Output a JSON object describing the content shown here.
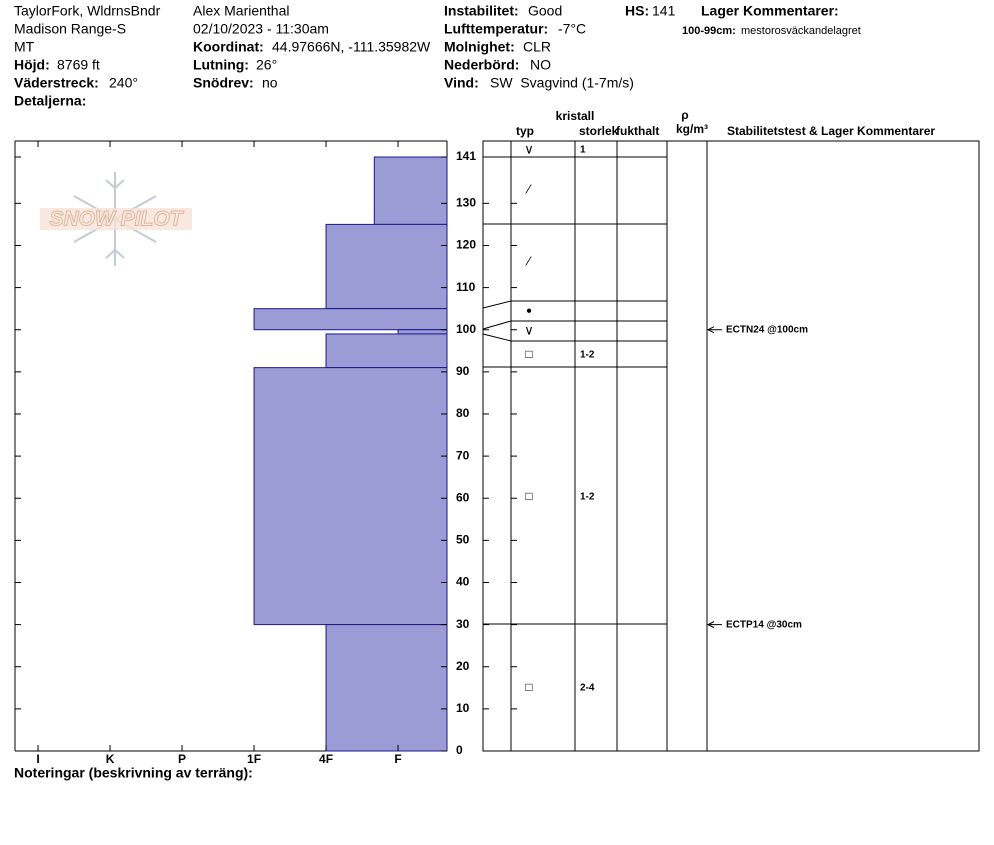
{
  "header": {
    "location": "TaylorFork, WldrnsBndr",
    "range": "Madison Range-S",
    "state": "MT",
    "elevation_label": "Höjd:",
    "elevation": "8769 ft",
    "aspect_label": "Väderstreck:",
    "aspect": "240°",
    "details_label": "Detaljerna:",
    "observer": "Alex Marienthal",
    "datetime": "02/10/2023 - 11:30am",
    "coord_label": "Koordinat:",
    "coord": "44.97666N, -111.35982W",
    "slope_label": "Lutning:",
    "slope": "26°",
    "snowdrift_label": "Snödrev:",
    "snowdrift": "no",
    "stability_label": "Instabilitet:",
    "stability": "Good",
    "airtemp_label": "Lufttemperatur:",
    "airtemp": "-7°C",
    "sky_label": "Molnighet:",
    "sky": "CLR",
    "precip_label": "Nederbörd:",
    "precip": "NO",
    "wind_label": "Vind:",
    "wind": "SW  Svagvind (1-7m/s)",
    "hs_label": "HS:",
    "hs": "141",
    "comments_title": "Lager Kommentarer:",
    "comment_range": "100-99cm:",
    "comment": "mestorosväckandelagret"
  },
  "logo": "SNOW PILOT",
  "table_header": {
    "crystal": "kristall",
    "type": "typ",
    "size": "storlek",
    "moisture": "fukthalt",
    "rho": "ρ",
    "density_unit": "kg/m³",
    "tests": "Stabilitetstest & Lager Kommentarer"
  },
  "grains": [
    {
      "type": "∨",
      "size": "1"
    },
    {
      "type": "⁄"
    },
    {
      "type": "⁄"
    },
    {
      "type": "●"
    },
    {
      "type": "∨"
    },
    {
      "type": "□",
      "size": "1-2"
    },
    {
      "type": "□",
      "size": "1-2"
    },
    {
      "type": "□",
      "size": "2-4"
    }
  ],
  "chart_data": {
    "type": "hardness-profile",
    "layers": [
      {
        "top": 141,
        "bottom": 125,
        "hardness": 1.33
      },
      {
        "top": 125,
        "bottom": 105,
        "hardness": 2
      },
      {
        "top": 105,
        "bottom": 100,
        "hardness": 3
      },
      {
        "top": 100,
        "bottom": 99,
        "hardness": 1
      },
      {
        "top": 99,
        "bottom": 91,
        "hardness": 2
      },
      {
        "top": 91,
        "bottom": 30,
        "hardness": 3
      },
      {
        "top": 30,
        "bottom": 0,
        "hardness": 2
      }
    ],
    "color": "#9b9bd6",
    "xlim": [
      6.32,
      0.32
    ],
    "xticks": [
      {
        "value": 6,
        "label": "I"
      },
      {
        "value": 5,
        "label": "K"
      },
      {
        "value": 4,
        "label": "P"
      },
      {
        "value": 3,
        "label": "1F"
      },
      {
        "value": 2,
        "label": "4F"
      },
      {
        "value": 1,
        "label": "F"
      }
    ],
    "ylim": [
      0,
      141
    ],
    "yticks": [
      0,
      10,
      20,
      30,
      40,
      50,
      60,
      70,
      80,
      90,
      100,
      110,
      120,
      130,
      141
    ]
  },
  "stability_tests": [
    {
      "label": "ECTN24 @100cm",
      "depth": 100
    },
    {
      "label": "ECTP14 @30cm",
      "depth": 30
    }
  ],
  "footer_note": "Noteringar (beskrivning av terräng):"
}
